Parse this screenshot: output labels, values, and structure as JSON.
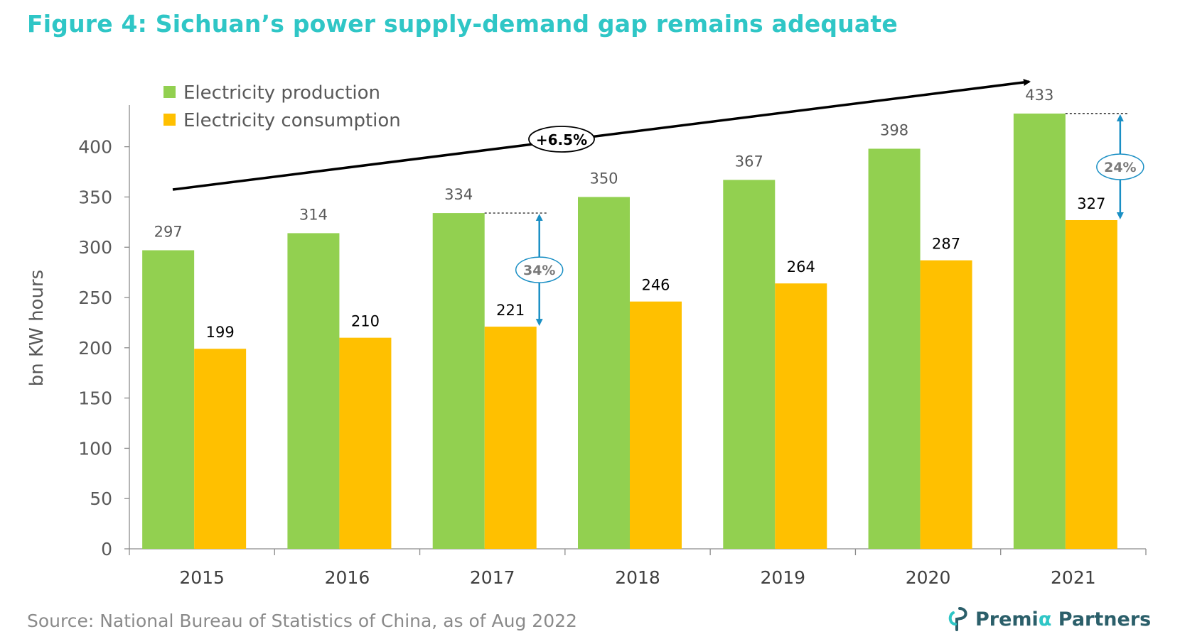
{
  "title": "Figure 4: Sichuan’s power supply-demand gap remains adequate",
  "source": "Source: National Bureau of Statistics of China, as of Aug 2022",
  "brand": {
    "name_part1": "Premi",
    "name_alpha": "α",
    "name_part2": " Partners"
  },
  "colors": {
    "title": "#2fc6c6",
    "production": "#92d050",
    "consumption": "#ffc000",
    "gap_arrow": "#1a8fc4",
    "axis_text": "#595959",
    "trend": "#000000"
  },
  "chart_data": {
    "type": "bar",
    "categories": [
      "2015",
      "2016",
      "2017",
      "2018",
      "2019",
      "2020",
      "2021"
    ],
    "series": [
      {
        "name": "Electricity production",
        "values": [
          297,
          314,
          334,
          350,
          367,
          398,
          433
        ]
      },
      {
        "name": "Electricity consumption",
        "values": [
          199,
          210,
          221,
          246,
          264,
          287,
          327
        ]
      }
    ],
    "ylabel": "bn KW hours",
    "ylim": [
      0,
      440
    ],
    "yticks": [
      0,
      50,
      100,
      150,
      200,
      250,
      300,
      350,
      400
    ],
    "legend_position": "top-left",
    "grid": false,
    "annotations": {
      "trend": {
        "label": "+6.5%",
        "from_category": "2015",
        "to_category": "2021"
      },
      "gaps": [
        {
          "category": "2017",
          "label": "34%"
        },
        {
          "category": "2021",
          "label": "24%"
        }
      ]
    }
  }
}
